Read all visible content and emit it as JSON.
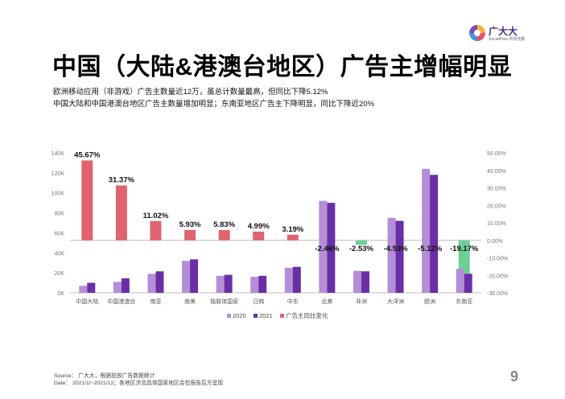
{
  "brand": {
    "name": "广大大",
    "sub": "SocialPeta 市场流量"
  },
  "title": "中国（大陆&港澳台地区）广告主增幅明显",
  "subtitles": [
    "欧洲移动应用（非游戏）广告主数量近12万，虽总计数量最高，但同比下降5.12%",
    "中国大陆和中国港澳台地区广告主数量增加明显；东南亚地区广告主下降明显，同比下降近20%"
  ],
  "source": {
    "line1": "Source： 广大大，根据投放广告数据统计",
    "line2": "Date： 2021/1/~2021/12；各地区涉及具体国家地区会在报告后方呈现"
  },
  "page_number": "9",
  "colors": {
    "y2020": "#b48ed6",
    "y2021": "#6b2fa5",
    "growth_pos": "#df6470",
    "growth_neg": "#6ccf95",
    "axis": "#bdbdbd",
    "tick": "#777777"
  },
  "chart_data": {
    "type": "bar",
    "categories": [
      "中国大陆",
      "中国港澳台",
      "南亚",
      "南美",
      "独联体国家",
      "日韩",
      "中东",
      "北美",
      "非洲",
      "大洋洲",
      "欧洲",
      "东南亚"
    ],
    "series": [
      {
        "name": "2020",
        "axis": "left",
        "values": [
          7000,
          11000,
          19000,
          32000,
          17000,
          16000,
          25000,
          92000,
          22000,
          75000,
          124000,
          24000
        ]
      },
      {
        "name": "2021",
        "axis": "left",
        "values": [
          10000,
          14500,
          21500,
          33500,
          18000,
          17000,
          26000,
          90000,
          21500,
          72000,
          118000,
          19000
        ]
      },
      {
        "name": "广告主同比变化",
        "axis": "right",
        "values": [
          45.67,
          31.37,
          11.02,
          5.93,
          5.83,
          4.99,
          3.19,
          -2.46,
          -2.53,
          -4.53,
          -5.12,
          -19.17
        ]
      }
    ],
    "data_labels": [
      "45.67%",
      "31.37%",
      "11.02%",
      "5.93%",
      "5.83%",
      "4.99%",
      "3.19%",
      "-2.46%",
      "-2.53%",
      "-4.53%",
      "-5.12%",
      "-19.17%"
    ],
    "y_left": {
      "ylim": [
        0,
        140000
      ],
      "ticks": [
        "0K",
        "20K",
        "40K",
        "60K",
        "80K",
        "100K",
        "120K",
        "140K"
      ]
    },
    "y_right": {
      "ylim": [
        -30,
        50
      ],
      "ticks": [
        "50.00%",
        "40.00%",
        "30.00%",
        "20.00%",
        "10.00%",
        "0.00%",
        "-10.00%",
        "-20.00%",
        "-30.00%"
      ]
    },
    "legend": [
      "2020",
      "2021",
      "广告主同比变化"
    ],
    "legend_position": "bottom",
    "grid": false
  }
}
